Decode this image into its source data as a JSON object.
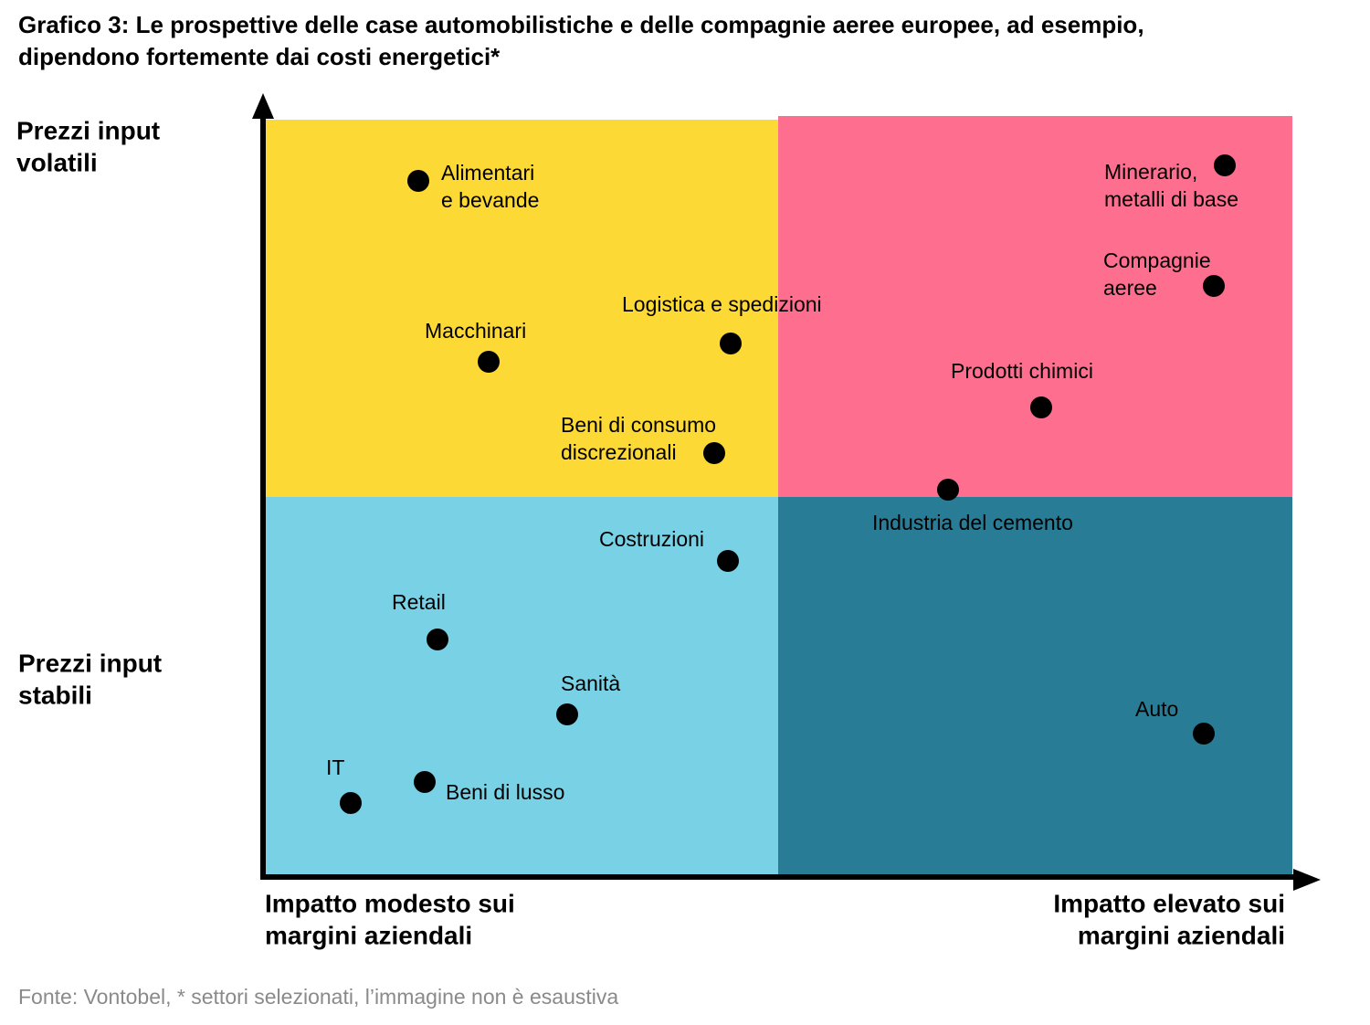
{
  "title": [
    "Grafico 3: Le prospettive delle case automobilistiche e delle compagnie aeree europee, ad esempio,",
    "dipendono fortemente dai costi energetici*"
  ],
  "y_axis": {
    "top": [
      "Prezzi input",
      "volatili"
    ],
    "bottom": [
      "Prezzi input",
      "stabili"
    ]
  },
  "x_axis": {
    "left": [
      "Impatto modesto sui",
      "margini aziendali"
    ],
    "right": [
      "Impatto elevato sui",
      "margini aziendali"
    ]
  },
  "nodes": [
    {
      "label": [
        "Alimentari",
        "e bevande"
      ]
    },
    {
      "label": [
        "Macchinari"
      ]
    },
    {
      "label": [
        "Logistica e spedizioni"
      ]
    },
    {
      "label": [
        "Beni di consumo",
        "discrezionali"
      ]
    },
    {
      "label": [
        "Minerario,",
        "metalli di base"
      ]
    },
    {
      "label": [
        "Compagnie",
        "aeree"
      ]
    },
    {
      "label": [
        "Prodotti chimici"
      ]
    },
    {
      "label": [
        "Industria del cemento"
      ]
    },
    {
      "label": [
        "Costruzioni"
      ]
    },
    {
      "label": [
        "Retail"
      ]
    },
    {
      "label": [
        "Sanità"
      ]
    },
    {
      "label": [
        "IT"
      ]
    },
    {
      "label": [
        "Beni di lusso"
      ]
    },
    {
      "label": [
        "Auto"
      ]
    }
  ],
  "source": "Fonte: Vontobel, * settori selezionati, l’immagine non è esaustiva"
}
